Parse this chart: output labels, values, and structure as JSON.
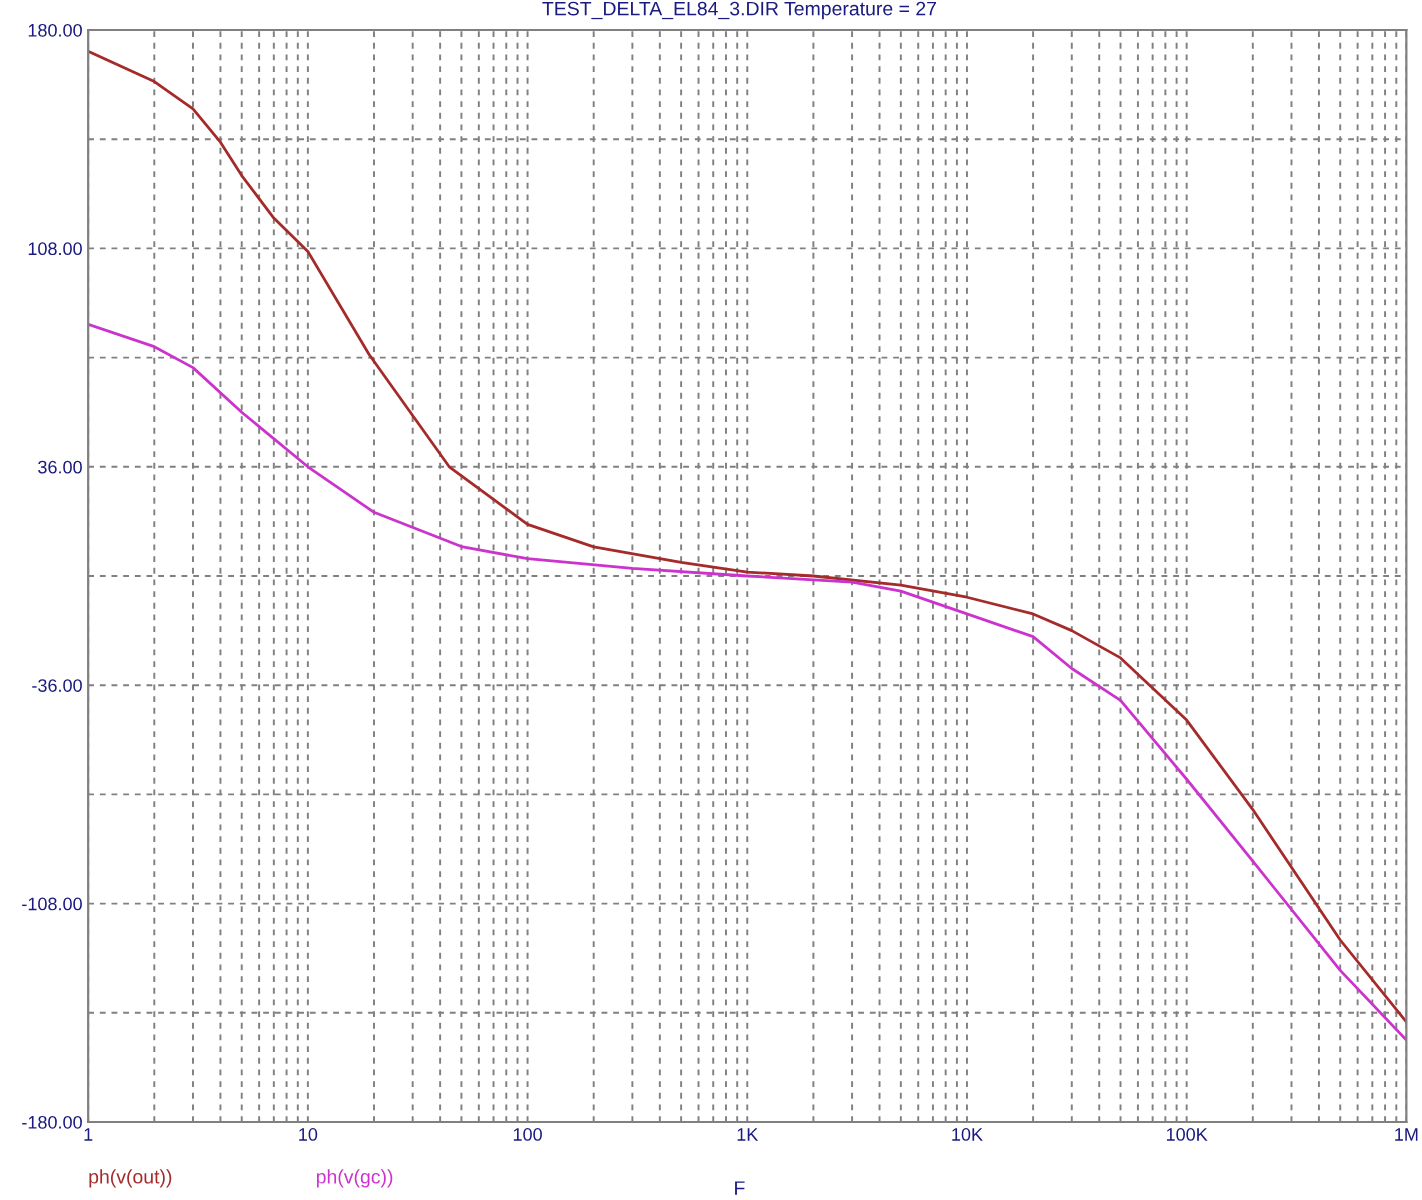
{
  "chart_data": {
    "type": "line",
    "title": "TEST_DELTA_EL84_3.DIR Temperature = 27",
    "xlabel": "F",
    "log": "x",
    "grid": true,
    "legend": "bottom left",
    "line_style": "solid",
    "marker": "none",
    "xlim": [
      1,
      1000000
    ],
    "xticks": [
      1,
      {
        "value": 2,
        "label": null
      },
      {
        "value": 3,
        "label": null
      },
      {
        "value": 4,
        "label": null
      },
      {
        "value": 5,
        "label": null
      },
      {
        "value": 6,
        "label": null
      },
      {
        "value": 7,
        "label": null
      },
      {
        "value": 8,
        "label": null
      },
      {
        "value": 9,
        "label": null
      },
      10,
      {
        "value": 20,
        "label": null
      },
      {
        "value": 30,
        "label": null
      },
      {
        "value": 40,
        "label": null
      },
      {
        "value": 50,
        "label": null
      },
      {
        "value": 60,
        "label": null
      },
      {
        "value": 70,
        "label": null
      },
      {
        "value": 80,
        "label": null
      },
      {
        "value": 90,
        "label": null
      },
      100,
      {
        "value": 200,
        "label": null
      },
      {
        "value": 300,
        "label": null
      },
      {
        "value": 400,
        "label": null
      },
      {
        "value": 500,
        "label": null
      },
      {
        "value": 600,
        "label": null
      },
      {
        "value": 700,
        "label": null
      },
      {
        "value": 800,
        "label": null
      },
      {
        "value": 900,
        "label": null
      },
      {
        "value": 1000,
        "label": "1K"
      },
      {
        "value": 2000,
        "label": null
      },
      {
        "value": 3000,
        "label": null
      },
      {
        "value": 4000,
        "label": null
      },
      {
        "value": 5000,
        "label": null
      },
      {
        "value": 6000,
        "label": null
      },
      {
        "value": 7000,
        "label": null
      },
      {
        "value": 8000,
        "label": null
      },
      {
        "value": 9000,
        "label": null
      },
      {
        "value": 10000,
        "label": "10K"
      },
      {
        "value": 20000,
        "label": null
      },
      {
        "value": 30000,
        "label": null
      },
      {
        "value": 40000,
        "label": null
      },
      {
        "value": 50000,
        "label": null
      },
      {
        "value": 60000,
        "label": null
      },
      {
        "value": 70000,
        "label": null
      },
      {
        "value": 80000,
        "label": null
      },
      {
        "value": 90000,
        "label": null
      },
      {
        "value": 100000,
        "label": "100K"
      },
      {
        "value": 200000,
        "label": null
      },
      {
        "value": 300000,
        "label": null
      },
      {
        "value": 400000,
        "label": null
      },
      {
        "value": 500000,
        "label": null
      },
      {
        "value": 600000,
        "label": null
      },
      {
        "value": 700000,
        "label": null
      },
      {
        "value": 800000,
        "label": null
      },
      {
        "value": 900000,
        "label": null
      },
      {
        "value": 1000000,
        "label": "1M"
      }
    ],
    "ylim": [
      -180,
      180
    ],
    "yticks": [
      {
        "value": -180,
        "label": "-180.00"
      },
      {
        "value": -144,
        "label": null
      },
      {
        "value": -108,
        "label": "-108.00"
      },
      {
        "value": -72,
        "label": null
      },
      {
        "value": -36,
        "label": "-36.00"
      },
      {
        "value": 0,
        "label": null
      },
      {
        "value": 36,
        "label": "36.00"
      },
      {
        "value": 72,
        "label": null
      },
      {
        "value": 108,
        "label": "108.00"
      },
      {
        "value": 144,
        "label": null
      },
      {
        "value": 180,
        "label": "180.00"
      }
    ],
    "series": [
      {
        "name": "ph(v(out))",
        "color": "#a52a2a",
        "x": [
          1,
          2,
          3,
          4,
          5,
          7,
          10,
          19,
          44,
          100,
          200,
          500,
          1000,
          2000,
          5000,
          10000,
          20000,
          30000,
          50000,
          100000,
          200000,
          500000,
          1000000
        ],
        "values": [
          173,
          163,
          154,
          143,
          132,
          118,
          107,
          73,
          36,
          17,
          9.6,
          4.5,
          1.3,
          0,
          -3,
          -7,
          -12.5,
          -18,
          -27,
          -47.5,
          -77,
          -120,
          -147
        ]
      },
      {
        "name": "ph(v(gc))",
        "color": "#cc33cc",
        "x": [
          1,
          2,
          3,
          5,
          10,
          20,
          50,
          100,
          300,
          1000,
          3000,
          5000,
          10000,
          20000,
          30000,
          50000,
          100000,
          200000,
          500000,
          1000000
        ],
        "values": [
          83,
          75.6,
          68.7,
          54,
          36,
          21,
          9.7,
          5.7,
          2.5,
          0,
          -2,
          -5,
          -12.5,
          -20,
          -30.5,
          -41,
          -67,
          -94,
          -130,
          -153
        ]
      }
    ]
  }
}
